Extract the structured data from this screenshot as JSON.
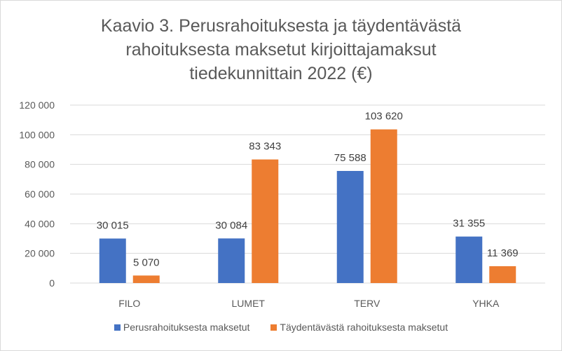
{
  "chart_data": {
    "type": "bar",
    "title_lines": [
      "Kaavio 3. Perusrahoituksesta  ja täydentävästä",
      "rahoituksesta maksetut kirjoittajamaksut",
      "tiedekunnittain 2022 (€)"
    ],
    "categories": [
      "FILO",
      "LUMET",
      "TERV",
      "YHKA"
    ],
    "series": [
      {
        "name": "Perusrahoituksesta maksetut",
        "values": [
          30015,
          30084,
          75588,
          31355
        ],
        "labels": [
          "30 015",
          "30 084",
          "75 588",
          "31 355"
        ],
        "color": "#4472c4"
      },
      {
        "name": "Täydentävästä rahoituksesta maksetut",
        "values": [
          5070,
          83343,
          103620,
          11369
        ],
        "labels": [
          "5 070",
          "83 343",
          "103 620",
          "11 369"
        ],
        "color": "#ed7d31"
      }
    ],
    "ylim": [
      0,
      120000
    ],
    "yticks": [
      0,
      20000,
      40000,
      60000,
      80000,
      100000,
      120000
    ],
    "ytick_labels": [
      "0",
      "20 000",
      "40 000",
      "60 000",
      "80 000",
      "100 000",
      "120 000"
    ],
    "grid": true,
    "gridline_color": "#d9d9d9",
    "legend_position": "bottom"
  }
}
